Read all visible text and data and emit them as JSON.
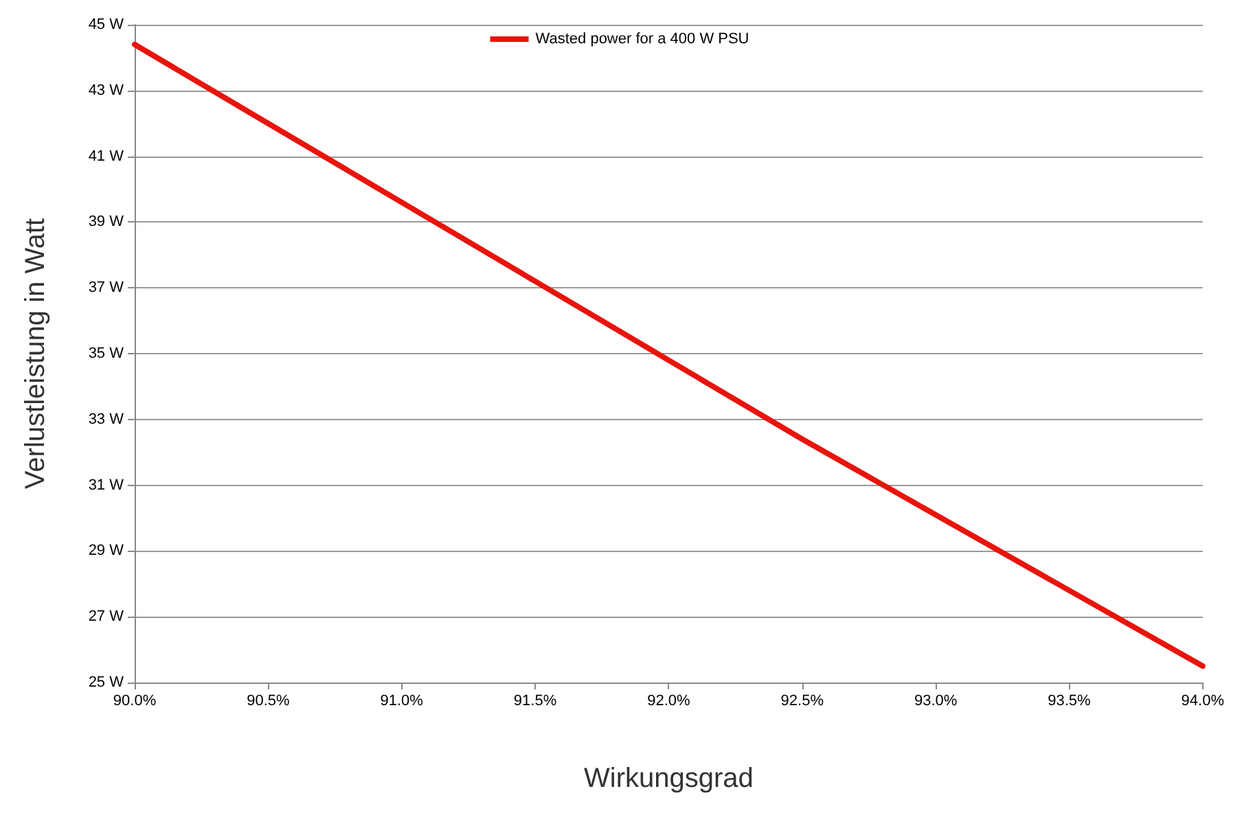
{
  "chart_data": {
    "type": "line",
    "xlabel": "Wirkungsgrad",
    "ylabel": "Verlustleistung in Watt",
    "x": [
      90,
      90.5,
      91,
      91.5,
      92,
      92.5,
      93,
      93.5,
      94
    ],
    "series": [
      {
        "name": "Wasted power for a 400 W PSU",
        "color": "#e8140c",
        "values": [
          44.4,
          42.0,
          39.6,
          37.2,
          34.8,
          32.4,
          30.1,
          27.8,
          25.5
        ]
      }
    ],
    "xlim": [
      90,
      94
    ],
    "xticks": [
      {
        "value": 90,
        "label": "90.0%"
      },
      {
        "value": 90.5,
        "label": "90.5%"
      },
      {
        "value": 91,
        "label": "91.0%"
      },
      {
        "value": 91.5,
        "label": "91.5%"
      },
      {
        "value": 92,
        "label": "92.0%"
      },
      {
        "value": 92.5,
        "label": "92.5%"
      },
      {
        "value": 93,
        "label": "93.0%"
      },
      {
        "value": 93.5,
        "label": "93.5%"
      },
      {
        "value": 94,
        "label": "94.0%"
      }
    ],
    "ylim": [
      25,
      45
    ],
    "yticks": [
      {
        "value": 25,
        "label": "25 W"
      },
      {
        "value": 27,
        "label": "27 W"
      },
      {
        "value": 29,
        "label": "29 W"
      },
      {
        "value": 31,
        "label": "31 W"
      },
      {
        "value": 33,
        "label": "33 W"
      },
      {
        "value": 35,
        "label": "35 W"
      },
      {
        "value": 37,
        "label": "37 W"
      },
      {
        "value": 39,
        "label": "39 W"
      },
      {
        "value": 41,
        "label": "41 W"
      },
      {
        "value": 43,
        "label": "43 W"
      },
      {
        "value": 45,
        "label": "45 W"
      }
    ],
    "grid": "y",
    "legend": "top",
    "marker": "none",
    "line_style": "solid"
  }
}
